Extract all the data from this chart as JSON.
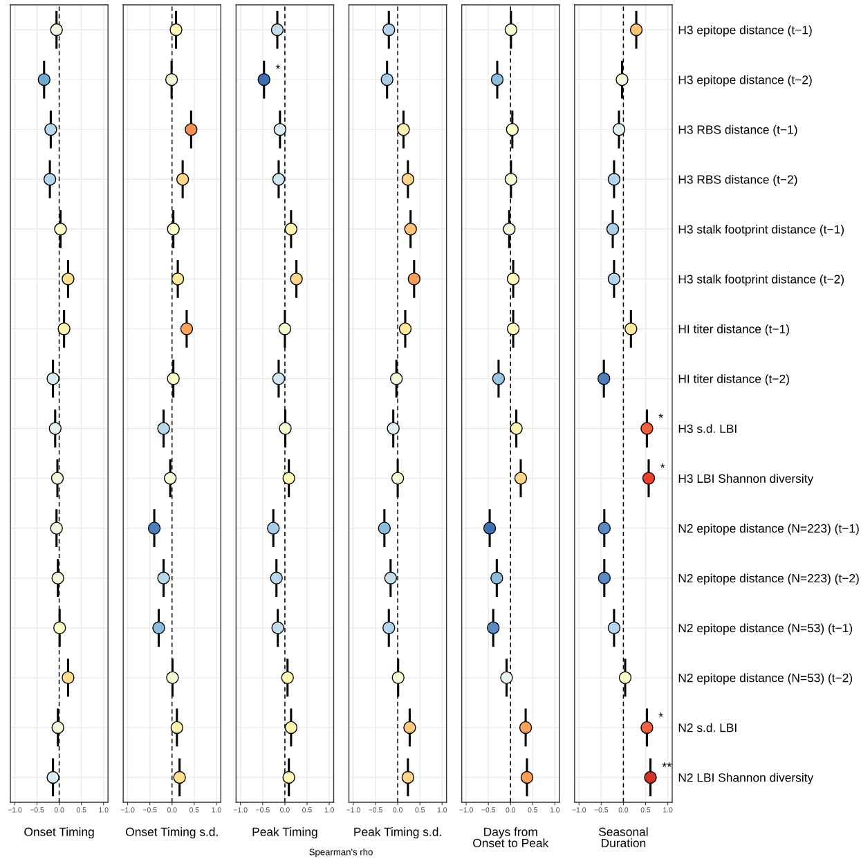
{
  "chart_data": [
    {
      "type": "scatter",
      "orientation": "horizontal",
      "xlabel": "Onset Timing",
      "tick_labels": "x",
      "marker": "circle",
      "grid": true,
      "categories": [
        null,
        null,
        null,
        null,
        null,
        null,
        null,
        null,
        null,
        null,
        null,
        null,
        null,
        null,
        null,
        null
      ],
      "values": [
        -0.06,
        -0.34,
        -0.19,
        -0.21,
        0.03,
        0.2,
        0.11,
        -0.14,
        -0.09,
        -0.04,
        -0.06,
        -0.03,
        0.01,
        0.2,
        -0.03,
        -0.14
      ],
      "colors": [
        "#eef6e0",
        "#74a9cf",
        "#b9d9ea",
        "#b3d6ea",
        "#fbfcc8",
        "#fee090",
        "#fef2b0",
        "#d8edf3",
        "#e4f2f0",
        "#f2f7da",
        "#eef6e0",
        "#f2f7da",
        "#fbfcc8",
        "#fee090",
        "#f2f7da",
        "#d8edf3"
      ],
      "xlim": [
        -1.1,
        1.1
      ],
      "xticks": [
        {
          "value": -1,
          "label": "−1.0"
        },
        {
          "value": -0.5,
          "label": "−0.5"
        },
        {
          "value": 0,
          "label": "0.0"
        },
        {
          "value": 0.5,
          "label": "0.5"
        },
        {
          "value": 1,
          "label": "1.0"
        }
      ],
      "ref_lines": [
        {
          "axis": "x",
          "value": 0,
          "line_style": "dashed"
        }
      ]
    },
    {
      "type": "scatter",
      "orientation": "horizontal",
      "xlabel": "Onset Timing s.d.",
      "tick_labels": "x",
      "marker": "circle",
      "grid": true,
      "categories": [
        null,
        null,
        null,
        null,
        null,
        null,
        null,
        null,
        null,
        null,
        null,
        null,
        null,
        null,
        null,
        null
      ],
      "values": [
        0.09,
        -0.01,
        0.43,
        0.24,
        0.03,
        0.13,
        0.33,
        0.03,
        -0.19,
        -0.04,
        -0.4,
        -0.19,
        -0.3,
        0.01,
        0.11,
        0.17
      ],
      "colors": [
        "#fef8b8",
        "#f2f7da",
        "#f88d52",
        "#fed58a",
        "#fbfcc8",
        "#fee99e",
        "#fba35c",
        "#fbfcc8",
        "#b9d9ea",
        "#f2f7da",
        "#4f7fbb",
        "#b9d9ea",
        "#8ebcdc",
        "#f7fad0",
        "#fef2b0",
        "#fee090"
      ],
      "xlim": [
        -1.1,
        1.1
      ],
      "xticks": [
        {
          "value": -1,
          "label": "−1.0"
        },
        {
          "value": -0.5,
          "label": "−0.5"
        },
        {
          "value": 0,
          "label": "0.0"
        },
        {
          "value": 0.5,
          "label": "0.5"
        },
        {
          "value": 1,
          "label": "1.0"
        }
      ],
      "ref_lines": [
        {
          "axis": "x",
          "value": 0,
          "line_style": "dashed"
        }
      ]
    },
    {
      "type": "scatter",
      "orientation": "horizontal",
      "xlabel": "Peak Timing",
      "tick_labels": "x",
      "marker": "circle",
      "grid": true,
      "categories": [
        null,
        null,
        null,
        null,
        null,
        null,
        null,
        null,
        null,
        null,
        null,
        null,
        null,
        null,
        null,
        null
      ],
      "values": [
        -0.17,
        -0.47,
        -0.11,
        -0.14,
        0.14,
        0.26,
        0.0,
        -0.14,
        0.01,
        0.09,
        -0.26,
        -0.19,
        -0.16,
        0.06,
        0.14,
        0.09
      ],
      "colors": [
        "#c2deec",
        "#3f6fb0",
        "#d8edf3",
        "#cfe7f1",
        "#fef2b0",
        "#fed58a",
        "#f7fad0",
        "#cfe7f1",
        "#f7fad0",
        "#fef8b8",
        "#a9cfe5",
        "#b9d9ea",
        "#c2deec",
        "#fef8b8",
        "#fef2b0",
        "#fef8b8"
      ],
      "xlim": [
        -1.1,
        1.1
      ],
      "xticks": [
        {
          "value": -1,
          "label": "−1.0"
        },
        {
          "value": -0.5,
          "label": "−0.5"
        },
        {
          "value": 0,
          "label": "0.0"
        },
        {
          "value": 0.5,
          "label": "0.5"
        },
        {
          "value": 1,
          "label": "1.0"
        }
      ],
      "ref_lines": [
        {
          "axis": "x",
          "value": 0,
          "line_style": "dashed"
        }
      ],
      "value_labels": [
        null,
        "*",
        null,
        null,
        null,
        null,
        null,
        null,
        null,
        null,
        null,
        null,
        null,
        null,
        null,
        null
      ],
      "annotations": [
        "Spearman's rho"
      ]
    },
    {
      "type": "scatter",
      "orientation": "horizontal",
      "xlabel": "Peak Timing s.d.",
      "tick_labels": "x",
      "marker": "circle",
      "grid": true,
      "categories": [
        null,
        null,
        null,
        null,
        null,
        null,
        null,
        null,
        null,
        null,
        null,
        null,
        null,
        null,
        null,
        null
      ],
      "values": [
        -0.2,
        -0.24,
        0.13,
        0.23,
        0.29,
        0.37,
        0.17,
        -0.03,
        -0.1,
        0.0,
        -0.3,
        -0.16,
        -0.2,
        0.01,
        0.27,
        0.23
      ],
      "colors": [
        "#b3d6ea",
        "#a9cfe5",
        "#fef2b0",
        "#fed58a",
        "#fdc274",
        "#f99d59",
        "#fee99e",
        "#f2f7da",
        "#e0f1f4",
        "#f7fad0",
        "#8ebcdc",
        "#c2deec",
        "#b3d6ea",
        "#f7fad0",
        "#fdca7c",
        "#fed58a"
      ],
      "xlim": [
        -1.1,
        1.1
      ],
      "xticks": [
        {
          "value": -1,
          "label": "−1.0"
        },
        {
          "value": -0.5,
          "label": "−0.5"
        },
        {
          "value": 0,
          "label": "0.0"
        },
        {
          "value": 0.5,
          "label": "0.5"
        },
        {
          "value": 1,
          "label": "1.0"
        }
      ],
      "ref_lines": [
        {
          "axis": "x",
          "value": 0,
          "line_style": "dashed"
        }
      ]
    },
    {
      "type": "scatter",
      "orientation": "horizontal",
      "xlabel": "Days from\nOnset to Peak",
      "tick_labels": "x",
      "marker": "circle",
      "grid": true,
      "categories": [
        null,
        null,
        null,
        null,
        null,
        null,
        null,
        null,
        null,
        null,
        null,
        null,
        null,
        null,
        null,
        null
      ],
      "values": [
        0.01,
        -0.3,
        0.04,
        0.01,
        -0.03,
        0.06,
        0.06,
        -0.27,
        0.13,
        0.23,
        -0.47,
        -0.31,
        -0.39,
        -0.09,
        0.34,
        0.37
      ],
      "colors": [
        "#f7fad0",
        "#8ebcdc",
        "#fbfcc8",
        "#f7fad0",
        "#f2f7da",
        "#fef8b8",
        "#fef8b8",
        "#9ac5e0",
        "#fef2b0",
        "#fed58a",
        "#3f6fb0",
        "#8ebcdc",
        "#5a8ac2",
        "#e4f2f0",
        "#fba35c",
        "#f99d59"
      ],
      "xlim": [
        -1.1,
        1.1
      ],
      "xticks": [
        {
          "value": -1,
          "label": "−1.0"
        },
        {
          "value": -0.5,
          "label": "−0.5"
        },
        {
          "value": 0,
          "label": "0.0"
        },
        {
          "value": 0.5,
          "label": "0.5"
        },
        {
          "value": 1,
          "label": "1.0"
        }
      ],
      "ref_lines": [
        {
          "axis": "x",
          "value": 0,
          "line_style": "dashed"
        }
      ]
    },
    {
      "type": "scatter",
      "orientation": "horizontal",
      "xlabel": "Seasonal\nDuration",
      "marker": "circle",
      "grid": true,
      "categories": [
        "H3 epitope distance (t−1)",
        "H3 epitope distance (t−2)",
        "H3 RBS distance (t−1)",
        "H3 RBS distance (t−2)",
        "H3 stalk footprint distance (t−1)",
        "H3 stalk footprint distance (t−2)",
        "HI titer distance (t−1)",
        "HI titer distance (t−2)",
        "H3 s.d. LBI",
        "H3 LBI Shannon diversity",
        "N2 epitope distance (N=223) (t−1)",
        "N2 epitope distance (N=223) (t−2)",
        "N2 epitope distance (N=53) (t−1)",
        "N2 epitope distance (N=53) (t−2)",
        "N2 s.d. LBI",
        "N2 LBI Shannon diversity"
      ],
      "values": [
        0.29,
        -0.03,
        -0.1,
        -0.21,
        -0.24,
        -0.21,
        0.17,
        -0.44,
        0.53,
        0.57,
        -0.43,
        -0.43,
        -0.21,
        0.04,
        0.53,
        0.61
      ],
      "colors": [
        "#fdc274",
        "#f2f7da",
        "#e0f1f4",
        "#b3d6ea",
        "#a9cfe5",
        "#b3d6ea",
        "#fee99e",
        "#4f7fbb",
        "#ef6140",
        "#e8412e",
        "#5a8ac2",
        "#5a8ac2",
        "#b3d6ea",
        "#fbfcc8",
        "#ef6140",
        "#d73027"
      ],
      "xlim": [
        -1.1,
        1.1
      ],
      "xticks": [
        {
          "value": -1,
          "label": "−1.0"
        },
        {
          "value": -0.5,
          "label": "−0.5"
        },
        {
          "value": 0,
          "label": "0.0"
        },
        {
          "value": 0.5,
          "label": "0.5"
        },
        {
          "value": 1,
          "label": "1.0"
        }
      ],
      "ref_lines": [
        {
          "axis": "x",
          "value": 0,
          "line_style": "dashed"
        }
      ],
      "value_labels": [
        null,
        null,
        null,
        null,
        null,
        null,
        null,
        null,
        "*",
        "*",
        null,
        null,
        null,
        null,
        "*",
        "**"
      ]
    }
  ]
}
